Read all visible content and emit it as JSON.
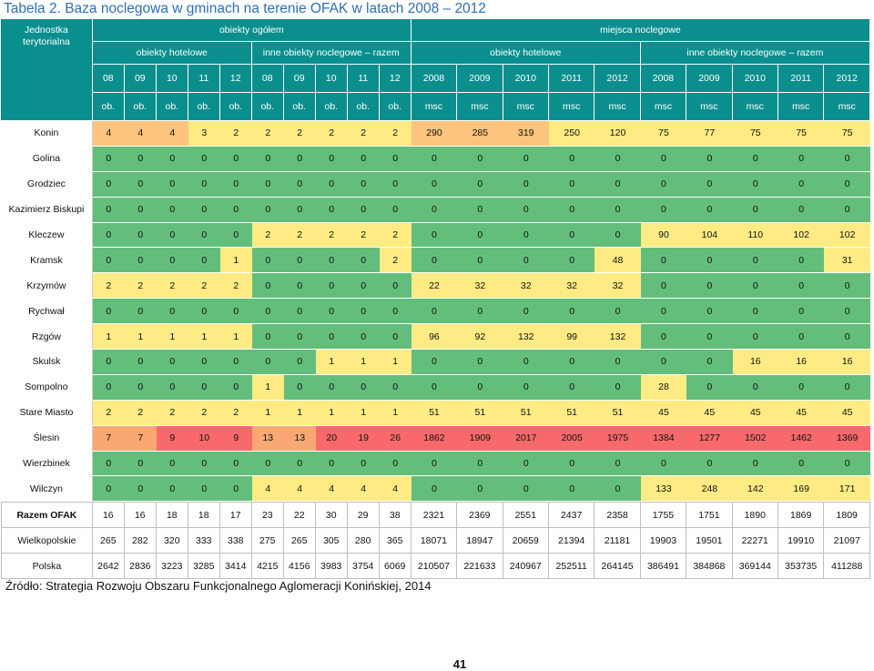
{
  "title": "Tabela 2. Baza noclegowa w gminach na terenie OFAK w latach 2008 – 2012",
  "header": {
    "unit_col": [
      "Jednostka",
      "terytorialna"
    ],
    "group_objects": "obiekty ogółem",
    "group_places": "miejsca noclegowe",
    "sub_hotel_obj": "obiekty hotelowe",
    "sub_other_obj": "inne obiekty noclegowe – razem",
    "sub_hotel_places": "obiekty hotelowe",
    "sub_other_places": "inne obiekty noclegowe – razem",
    "years": [
      "08",
      "09",
      "10",
      "11",
      "12",
      "08",
      "09",
      "10",
      "11",
      "12",
      "2008",
      "2009",
      "2010",
      "2011",
      "2012",
      "2008",
      "2009",
      "2010",
      "2011",
      "2012"
    ],
    "units": [
      "ob.",
      "ob.",
      "ob.",
      "ob.",
      "ob.",
      "ob.",
      "ob.",
      "ob.",
      "ob.",
      "ob.",
      "msc",
      "msc",
      "msc",
      "msc",
      "msc",
      "msc",
      "msc",
      "msc",
      "msc",
      "msc"
    ]
  },
  "rows": [
    {
      "name": "Konin",
      "values": [
        "4",
        "4",
        "4",
        "3",
        "2",
        "2",
        "2",
        "2",
        "2",
        "2",
        "290",
        "285",
        "319",
        "250",
        "120",
        "75",
        "77",
        "75",
        "75",
        "75"
      ],
      "colors": [
        "#fcc47c",
        "#fcc47c",
        "#fcc47c",
        "#ffeb84",
        "#ffeb84",
        "#ffeb84",
        "#ffeb84",
        "#ffeb84",
        "#ffeb84",
        "#ffeb84",
        "#fcc47c",
        "#fcc47c",
        "#fcc47c",
        "#ffeb84",
        "#ffeb84",
        "#ffeb84",
        "#ffeb84",
        "#ffeb84",
        "#ffeb84",
        "#ffeb84"
      ]
    },
    {
      "name": "Golina",
      "values": [
        "0",
        "0",
        "0",
        "0",
        "0",
        "0",
        "0",
        "0",
        "0",
        "0",
        "0",
        "0",
        "0",
        "0",
        "0",
        "0",
        "0",
        "0",
        "0",
        "0"
      ]
    },
    {
      "name": "Grodziec",
      "values": [
        "0",
        "0",
        "0",
        "0",
        "0",
        "0",
        "0",
        "0",
        "0",
        "0",
        "0",
        "0",
        "0",
        "0",
        "0",
        "0",
        "0",
        "0",
        "0",
        "0"
      ]
    },
    {
      "name": "Kazimierz Biskupi",
      "values": [
        "0",
        "0",
        "0",
        "0",
        "0",
        "0",
        "0",
        "0",
        "0",
        "0",
        "0",
        "0",
        "0",
        "0",
        "0",
        "0",
        "0",
        "0",
        "0",
        "0"
      ]
    },
    {
      "name": "Kleczew",
      "values": [
        "0",
        "0",
        "0",
        "0",
        "0",
        "2",
        "2",
        "2",
        "2",
        "2",
        "0",
        "0",
        "0",
        "0",
        "0",
        "90",
        "104",
        "110",
        "102",
        "102"
      ],
      "colors": [
        "#63be7b",
        "#63be7b",
        "#63be7b",
        "#63be7b",
        "#63be7b",
        "#ffeb84",
        "#ffeb84",
        "#ffeb84",
        "#ffeb84",
        "#ffeb84",
        "#63be7b",
        "#63be7b",
        "#63be7b",
        "#63be7b",
        "#63be7b",
        "#ffeb84",
        "#ffeb84",
        "#ffeb84",
        "#ffeb84",
        "#ffeb84"
      ]
    },
    {
      "name": "Kramsk",
      "values": [
        "0",
        "0",
        "0",
        "0",
        "1",
        "0",
        "0",
        "0",
        "0",
        "2",
        "0",
        "0",
        "0",
        "0",
        "48",
        "0",
        "0",
        "0",
        "0",
        "31"
      ],
      "colors": [
        "#63be7b",
        "#63be7b",
        "#63be7b",
        "#63be7b",
        "#ffeb84",
        "#63be7b",
        "#63be7b",
        "#63be7b",
        "#63be7b",
        "#ffeb84",
        "#63be7b",
        "#63be7b",
        "#63be7b",
        "#63be7b",
        "#ffeb84",
        "#63be7b",
        "#63be7b",
        "#63be7b",
        "#63be7b",
        "#ffeb84"
      ]
    },
    {
      "name": "Krzymów",
      "values": [
        "2",
        "2",
        "2",
        "2",
        "2",
        "0",
        "0",
        "0",
        "0",
        "0",
        "22",
        "32",
        "32",
        "32",
        "32",
        "0",
        "0",
        "0",
        "0",
        "0"
      ],
      "colors": [
        "#ffeb84",
        "#ffeb84",
        "#ffeb84",
        "#ffeb84",
        "#ffeb84",
        "#63be7b",
        "#63be7b",
        "#63be7b",
        "#63be7b",
        "#63be7b",
        "#ffeb84",
        "#ffeb84",
        "#ffeb84",
        "#ffeb84",
        "#ffeb84",
        "#63be7b",
        "#63be7b",
        "#63be7b",
        "#63be7b",
        "#63be7b"
      ]
    },
    {
      "name": "Rychwał",
      "values": [
        "0",
        "0",
        "0",
        "0",
        "0",
        "0",
        "0",
        "0",
        "0",
        "0",
        "0",
        "0",
        "0",
        "0",
        "0",
        "0",
        "0",
        "0",
        "0",
        "0"
      ]
    },
    {
      "name": "Rzgów",
      "values": [
        "1",
        "1",
        "1",
        "1",
        "1",
        "0",
        "0",
        "0",
        "0",
        "0",
        "96",
        "92",
        "132",
        "99",
        "132",
        "0",
        "0",
        "0",
        "0",
        "0"
      ],
      "colors": [
        "#ffeb84",
        "#ffeb84",
        "#ffeb84",
        "#ffeb84",
        "#ffeb84",
        "#63be7b",
        "#63be7b",
        "#63be7b",
        "#63be7b",
        "#63be7b",
        "#ffeb84",
        "#ffeb84",
        "#ffeb84",
        "#ffeb84",
        "#ffeb84",
        "#63be7b",
        "#63be7b",
        "#63be7b",
        "#63be7b",
        "#63be7b"
      ]
    },
    {
      "name": "Skulsk",
      "values": [
        "0",
        "0",
        "0",
        "0",
        "0",
        "0",
        "0",
        "1",
        "1",
        "1",
        "0",
        "0",
        "0",
        "0",
        "0",
        "0",
        "0",
        "16",
        "16",
        "16"
      ],
      "colors": [
        "#63be7b",
        "#63be7b",
        "#63be7b",
        "#63be7b",
        "#63be7b",
        "#63be7b",
        "#63be7b",
        "#ffeb84",
        "#ffeb84",
        "#ffeb84",
        "#63be7b",
        "#63be7b",
        "#63be7b",
        "#63be7b",
        "#63be7b",
        "#63be7b",
        "#63be7b",
        "#ffeb84",
        "#ffeb84",
        "#ffeb84"
      ]
    },
    {
      "name": "Sompolno",
      "values": [
        "0",
        "0",
        "0",
        "0",
        "0",
        "1",
        "0",
        "0",
        "0",
        "0",
        "0",
        "0",
        "0",
        "0",
        "0",
        "28",
        "0",
        "0",
        "0",
        "0"
      ],
      "colors": [
        "#63be7b",
        "#63be7b",
        "#63be7b",
        "#63be7b",
        "#63be7b",
        "#ffeb84",
        "#63be7b",
        "#63be7b",
        "#63be7b",
        "#63be7b",
        "#63be7b",
        "#63be7b",
        "#63be7b",
        "#63be7b",
        "#63be7b",
        "#ffeb84",
        "#63be7b",
        "#63be7b",
        "#63be7b",
        "#63be7b"
      ]
    },
    {
      "name": "Stare Miasto",
      "values": [
        "2",
        "2",
        "2",
        "2",
        "2",
        "1",
        "1",
        "1",
        "1",
        "1",
        "51",
        "51",
        "51",
        "51",
        "51",
        "45",
        "45",
        "45",
        "45",
        "45"
      ],
      "colors": [
        "#ffeb84",
        "#ffeb84",
        "#ffeb84",
        "#ffeb84",
        "#ffeb84",
        "#ffeb84",
        "#ffeb84",
        "#ffeb84",
        "#ffeb84",
        "#ffeb84",
        "#ffeb84",
        "#ffeb84",
        "#ffeb84",
        "#ffeb84",
        "#ffeb84",
        "#ffeb84",
        "#ffeb84",
        "#ffeb84",
        "#ffeb84",
        "#ffeb84"
      ]
    },
    {
      "name": "Ślesin",
      "values": [
        "7",
        "7",
        "9",
        "10",
        "9",
        "13",
        "13",
        "20",
        "19",
        "26",
        "1862",
        "1909",
        "2017",
        "2005",
        "1975",
        "1384",
        "1277",
        "1502",
        "1462",
        "1369"
      ],
      "colors": [
        "#f9a873",
        "#f9a873",
        "#f8696b",
        "#f8696b",
        "#f8696b",
        "#f9a873",
        "#f9a873",
        "#f8696b",
        "#f8696b",
        "#f8696b",
        "#f8696b",
        "#f8696b",
        "#f8696b",
        "#f8696b",
        "#f8696b",
        "#f8696b",
        "#f8696b",
        "#f8696b",
        "#f8696b",
        "#f8696b"
      ]
    },
    {
      "name": "Wierzbinek",
      "values": [
        "0",
        "0",
        "0",
        "0",
        "0",
        "0",
        "0",
        "0",
        "0",
        "0",
        "0",
        "0",
        "0",
        "0",
        "0",
        "0",
        "0",
        "0",
        "0",
        "0"
      ]
    },
    {
      "name": "Wilczyn",
      "values": [
        "0",
        "0",
        "0",
        "0",
        "0",
        "4",
        "4",
        "4",
        "4",
        "4",
        "0",
        "0",
        "0",
        "0",
        "0",
        "133",
        "248",
        "142",
        "169",
        "171"
      ],
      "colors": [
        "#63be7b",
        "#63be7b",
        "#63be7b",
        "#63be7b",
        "#63be7b",
        "#ffeb84",
        "#ffeb84",
        "#ffeb84",
        "#ffeb84",
        "#ffeb84",
        "#63be7b",
        "#63be7b",
        "#63be7b",
        "#63be7b",
        "#63be7b",
        "#ffeb84",
        "#ffeb84",
        "#ffeb84",
        "#ffeb84",
        "#ffeb84"
      ]
    }
  ],
  "summary_rows": [
    {
      "name": "Razem OFAK",
      "bold": true,
      "values": [
        "16",
        "16",
        "18",
        "18",
        "17",
        "23",
        "22",
        "30",
        "29",
        "38",
        "2321",
        "2369",
        "2551",
        "2437",
        "2358",
        "1755",
        "1751",
        "1890",
        "1869",
        "1809"
      ]
    },
    {
      "name": "Wielkopolskie",
      "bold": false,
      "values": [
        "265",
        "282",
        "320",
        "333",
        "338",
        "275",
        "265",
        "305",
        "280",
        "365",
        "18071",
        "18947",
        "20659",
        "21394",
        "21181",
        "19903",
        "19501",
        "22271",
        "19910",
        "21097"
      ]
    },
    {
      "name": "Polska",
      "bold": false,
      "values": [
        "2642",
        "2836",
        "3223",
        "3285",
        "3414",
        "4215",
        "4156",
        "3983",
        "3754",
        "6069",
        "210507",
        "221633",
        "240967",
        "252511",
        "264145",
        "386491",
        "384868",
        "369144",
        "353735",
        "411288"
      ]
    }
  ],
  "source": "Źródło: Strategia Rozwoju Obszaru Funkcjonalnego Aglomeracji Konińskiej, 2014",
  "page_number": "41",
  "colors": {
    "header_teal": "#0a8f8e",
    "zero_green": "#63be7b",
    "low_yellow": "#ffeb84",
    "mid_orange": "#fcc47c",
    "high_red": "#f8696b",
    "title_blue": "#2e6fb5"
  }
}
